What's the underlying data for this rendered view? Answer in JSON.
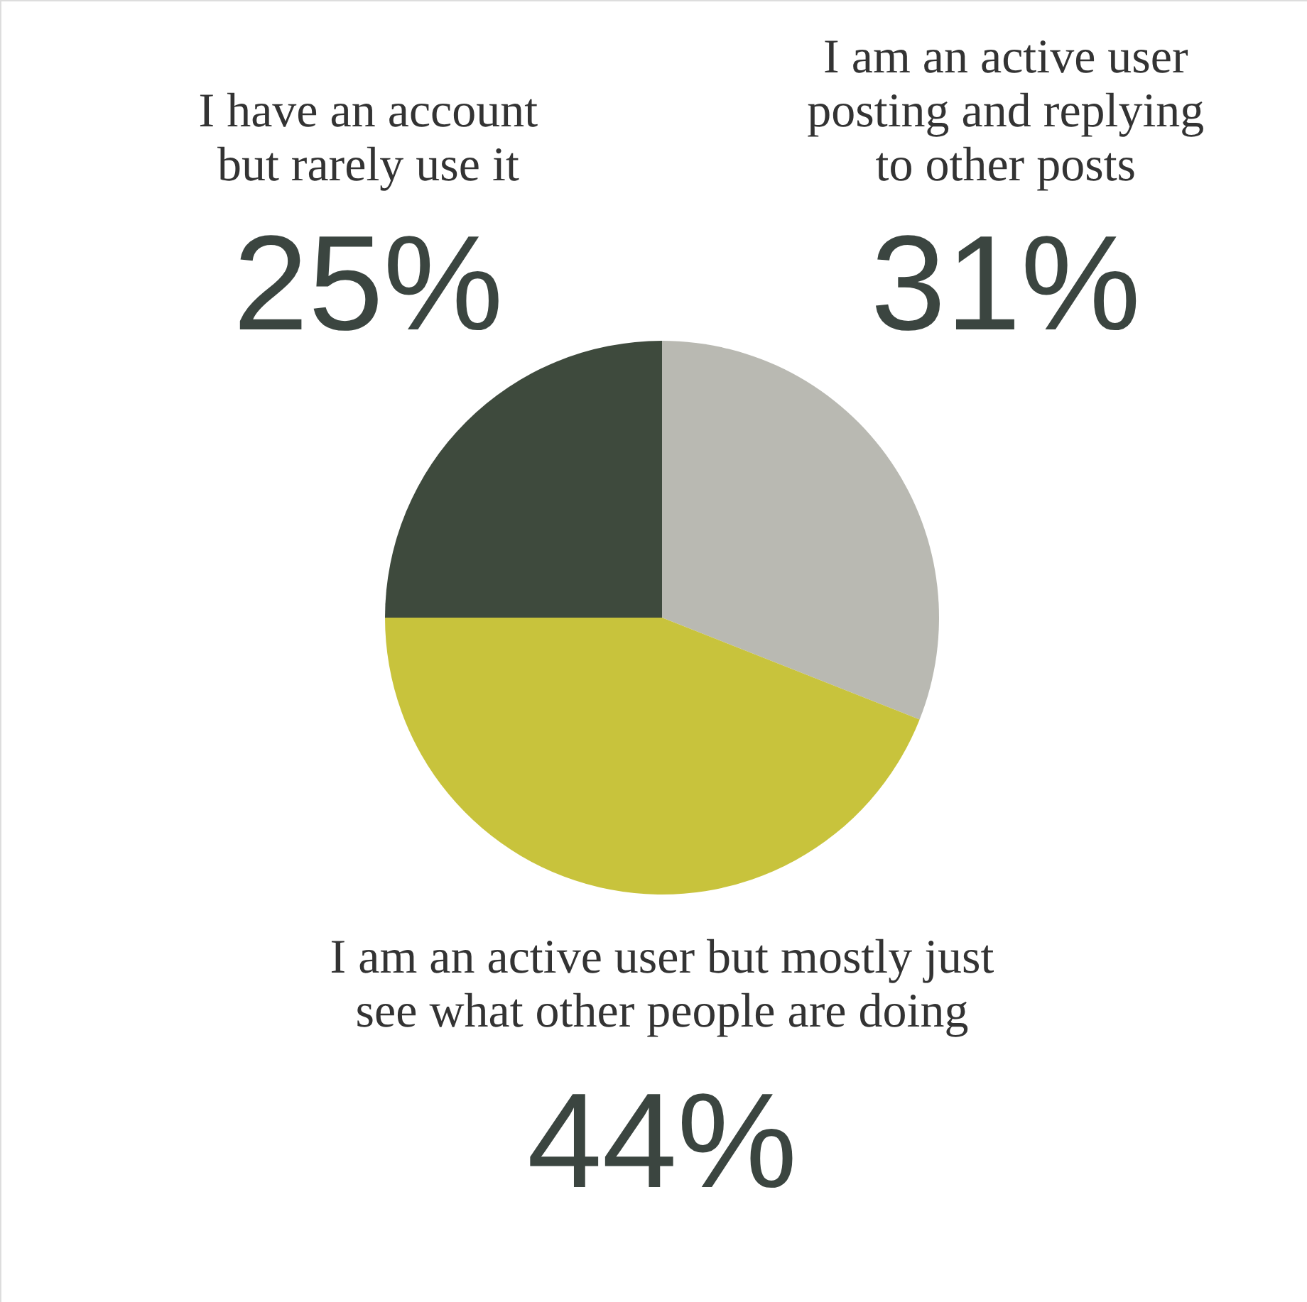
{
  "chart_data": {
    "type": "pie",
    "categories": [
      "I am an active user posting and replying to other posts",
      "I am an active user but mostly just see what other people are doing",
      "I have an account but rarely use it"
    ],
    "values": [
      31,
      44,
      25
    ],
    "colors": [
      "#b9b9b2",
      "#c8c33c",
      "#3e4a3d"
    ],
    "value_labels": [
      "31%",
      "44%",
      "25%"
    ]
  }
}
